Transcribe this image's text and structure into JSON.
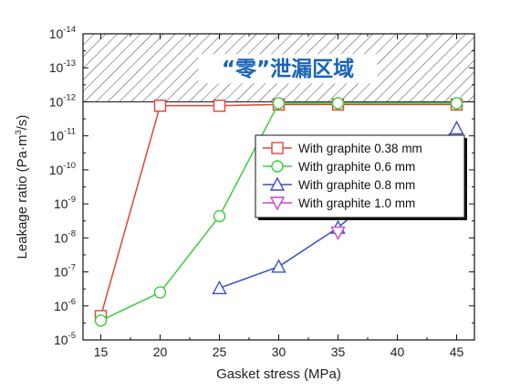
{
  "chart_data": {
    "type": "line",
    "xlabel": "Gasket stress (MPa)",
    "ylabel": "Leakage ratio (Pa·m³/s)",
    "ylabel_parts": {
      "pre": "Leakage ratio (Pa·m",
      "sup": "3",
      "post": "/s)"
    },
    "xlim": [
      13.5,
      46.5
    ],
    "ylim_exp": [
      -5,
      -14
    ],
    "y_scale": "log",
    "y_axis_direction": "inverted",
    "x_ticks": [
      15,
      20,
      25,
      30,
      35,
      40,
      45
    ],
    "y_tick_exponents": [
      -5,
      -6,
      -7,
      -8,
      -9,
      -10,
      -11,
      -12,
      -13,
      -14
    ],
    "y_tick_base": "10",
    "zero_leak_zone": {
      "label": "“零”泄漏区域",
      "from": 1e-12,
      "to": 1e-14
    },
    "legend_position": "right",
    "series": [
      {
        "name": "With graphite  0.38 mm",
        "color": "#e0443a",
        "marker": "square",
        "x": [
          15,
          20,
          25,
          30,
          35,
          45
        ],
        "y": [
          2e-06,
          1.3e-12,
          1.3e-12,
          1.2e-12,
          1.2e-12,
          1.2e-12
        ]
      },
      {
        "name": "With graphite  0.6 mm",
        "color": "#3fcc3f",
        "marker": "circle",
        "x": [
          15,
          20,
          25,
          30,
          35,
          45
        ],
        "y": [
          2.7e-06,
          4e-07,
          2.3e-09,
          1.1e-12,
          1.1e-12,
          1.1e-12
        ]
      },
      {
        "name": "With graphite  0.8 mm",
        "color": "#3d4fc4",
        "marker": "triangle-up",
        "x": [
          25,
          30,
          35,
          45
        ],
        "y": [
          3e-07,
          7e-08,
          5e-09,
          6e-12
        ]
      },
      {
        "name": "With graphite 1.0 mm",
        "color": "#cc44cc",
        "marker": "triangle-down",
        "x": [
          35
        ],
        "y": [
          7e-09
        ]
      }
    ]
  }
}
